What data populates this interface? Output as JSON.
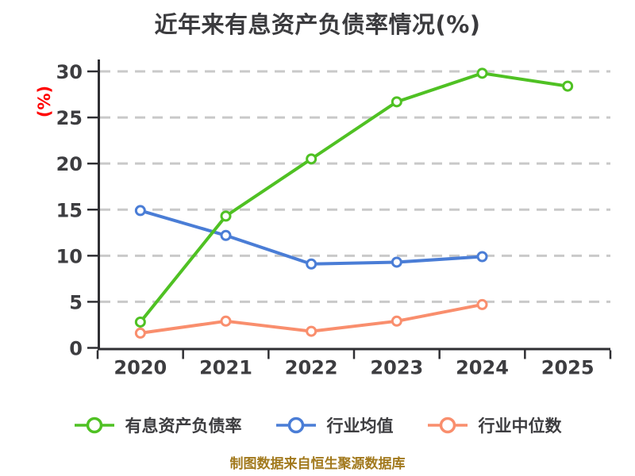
{
  "page": {
    "background": "#ffffff"
  },
  "chart_data": {
    "type": "line",
    "title": "近年来有息资产负债率情况(%)",
    "ylabel": "(%)",
    "xlabel": "",
    "categories": [
      "2020",
      "2021",
      "2022",
      "2023",
      "2024",
      "2025"
    ],
    "series": [
      {
        "name": "有息资产负债率",
        "color": "#4fc123",
        "values": [
          2.8,
          14.3,
          20.5,
          26.7,
          29.8,
          28.4
        ]
      },
      {
        "name": "行业均值",
        "color": "#4a7dd6",
        "values": [
          14.9,
          12.2,
          9.1,
          9.3,
          9.9,
          null
        ]
      },
      {
        "name": "行业中位数",
        "color": "#f98e6d",
        "values": [
          1.6,
          2.9,
          1.8,
          2.9,
          4.7,
          null
        ]
      }
    ],
    "ylim": [
      0,
      30
    ],
    "yticks": [
      0,
      5,
      10,
      15,
      20,
      25,
      30
    ],
    "grid": "horizontal-dashed",
    "legend_position": "bottom",
    "marker_style": "circle-white-fill"
  },
  "footer": {
    "source_note": "制图数据来自恒生聚源数据库"
  },
  "colors": {
    "title": "#3b3b3e",
    "tick_label": "#3d3d40",
    "axis": "#2f2f33",
    "gridline": "#c9c9c9",
    "ylabel": "#ff0000",
    "footer_text": "#a2791d",
    "series_green": "#4fc123",
    "series_blue": "#4a7dd6",
    "series_orange": "#f98e6d"
  }
}
